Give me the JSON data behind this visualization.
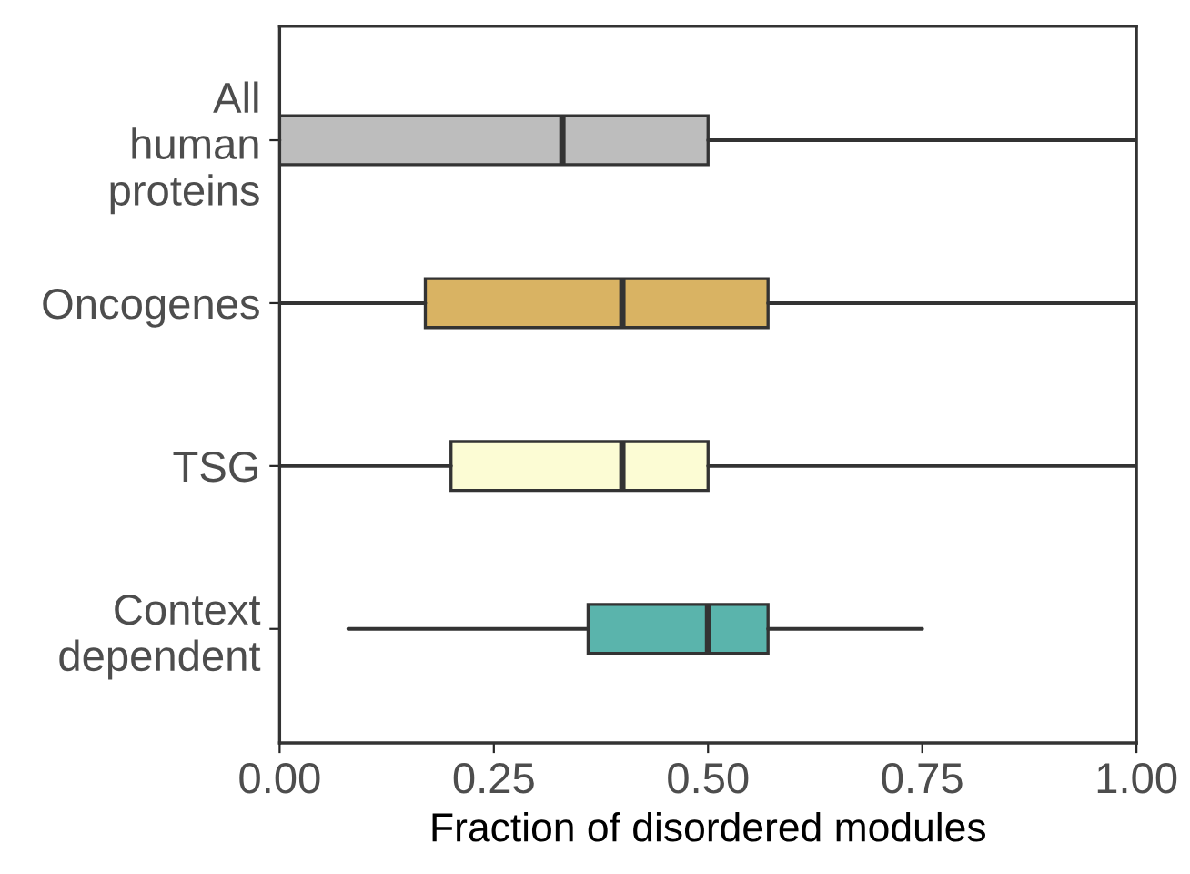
{
  "chart_data": {
    "type": "box",
    "orientation": "horizontal",
    "xlabel": "Fraction of disordered modules",
    "categories": [
      "All\nhuman\nproteins",
      "Oncogenes",
      "TSG",
      "Context\ndependent"
    ],
    "boxes": [
      {
        "low": 0,
        "q1": 0,
        "median": 0.33,
        "q3": 0.5,
        "high": 1
      },
      {
        "low": 0,
        "q1": 0.17,
        "median": 0.4,
        "q3": 0.57,
        "high": 1
      },
      {
        "low": 0,
        "q1": 0.2,
        "median": 0.4,
        "q3": 0.5,
        "high": 1
      },
      {
        "low": 0.08,
        "q1": 0.36,
        "median": 0.5,
        "q3": 0.57,
        "high": 0.75
      }
    ],
    "xlim": [
      0,
      1
    ],
    "xticks": [
      {
        "value": 0,
        "label": "0.00"
      },
      {
        "value": 0.25,
        "label": "0.25"
      },
      {
        "value": 0.5,
        "label": "0.50"
      },
      {
        "value": 0.75,
        "label": "0.75"
      },
      {
        "value": 1,
        "label": "1.00"
      }
    ],
    "colors": [
      "#bdbdbd",
      "#d9b363",
      "#fcfcd4",
      "#5ab4ac"
    ]
  }
}
